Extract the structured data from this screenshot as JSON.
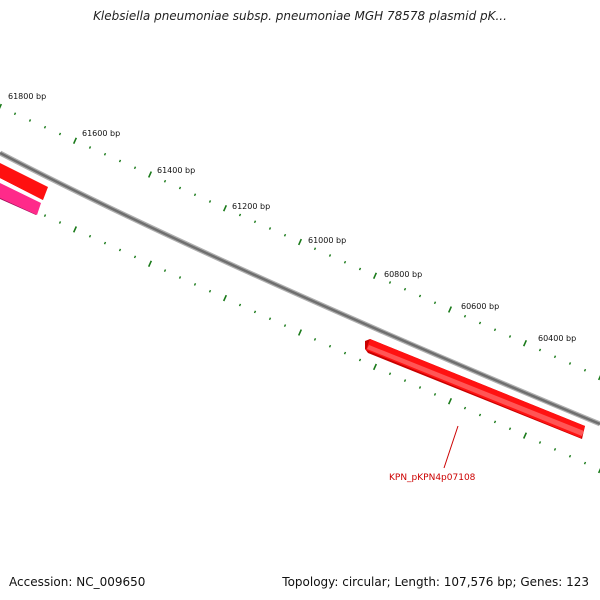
{
  "title": "Klebsiella pneumoniae subsp. pneumoniae MGH 78578 plasmid pK...",
  "footer": {
    "accession": "Accession: NC_009650",
    "stats": "Topology: circular; Length: 107,576 bp; Genes: 123"
  },
  "colors": {
    "backbone": "#808080",
    "gene_forward": "#ff0000",
    "gene_reverse": "#ff2a8a",
    "ticks": "#1a7a1a",
    "gene_label": "#cc0000"
  },
  "scale": {
    "unit": "bp",
    "labels": [
      "61800 bp",
      "61600 bp",
      "61400 bp",
      "61200 bp",
      "61000 bp",
      "60800 bp",
      "60600 bp",
      "60400 bp"
    ]
  },
  "genes": [
    {
      "id": "gene-a",
      "label": "",
      "strand": "forward"
    },
    {
      "id": "gene-b",
      "label": "",
      "strand": "reverse"
    },
    {
      "id": "gene-c",
      "label": "KPN_pKPN4p07108",
      "strand": "forward"
    }
  ]
}
